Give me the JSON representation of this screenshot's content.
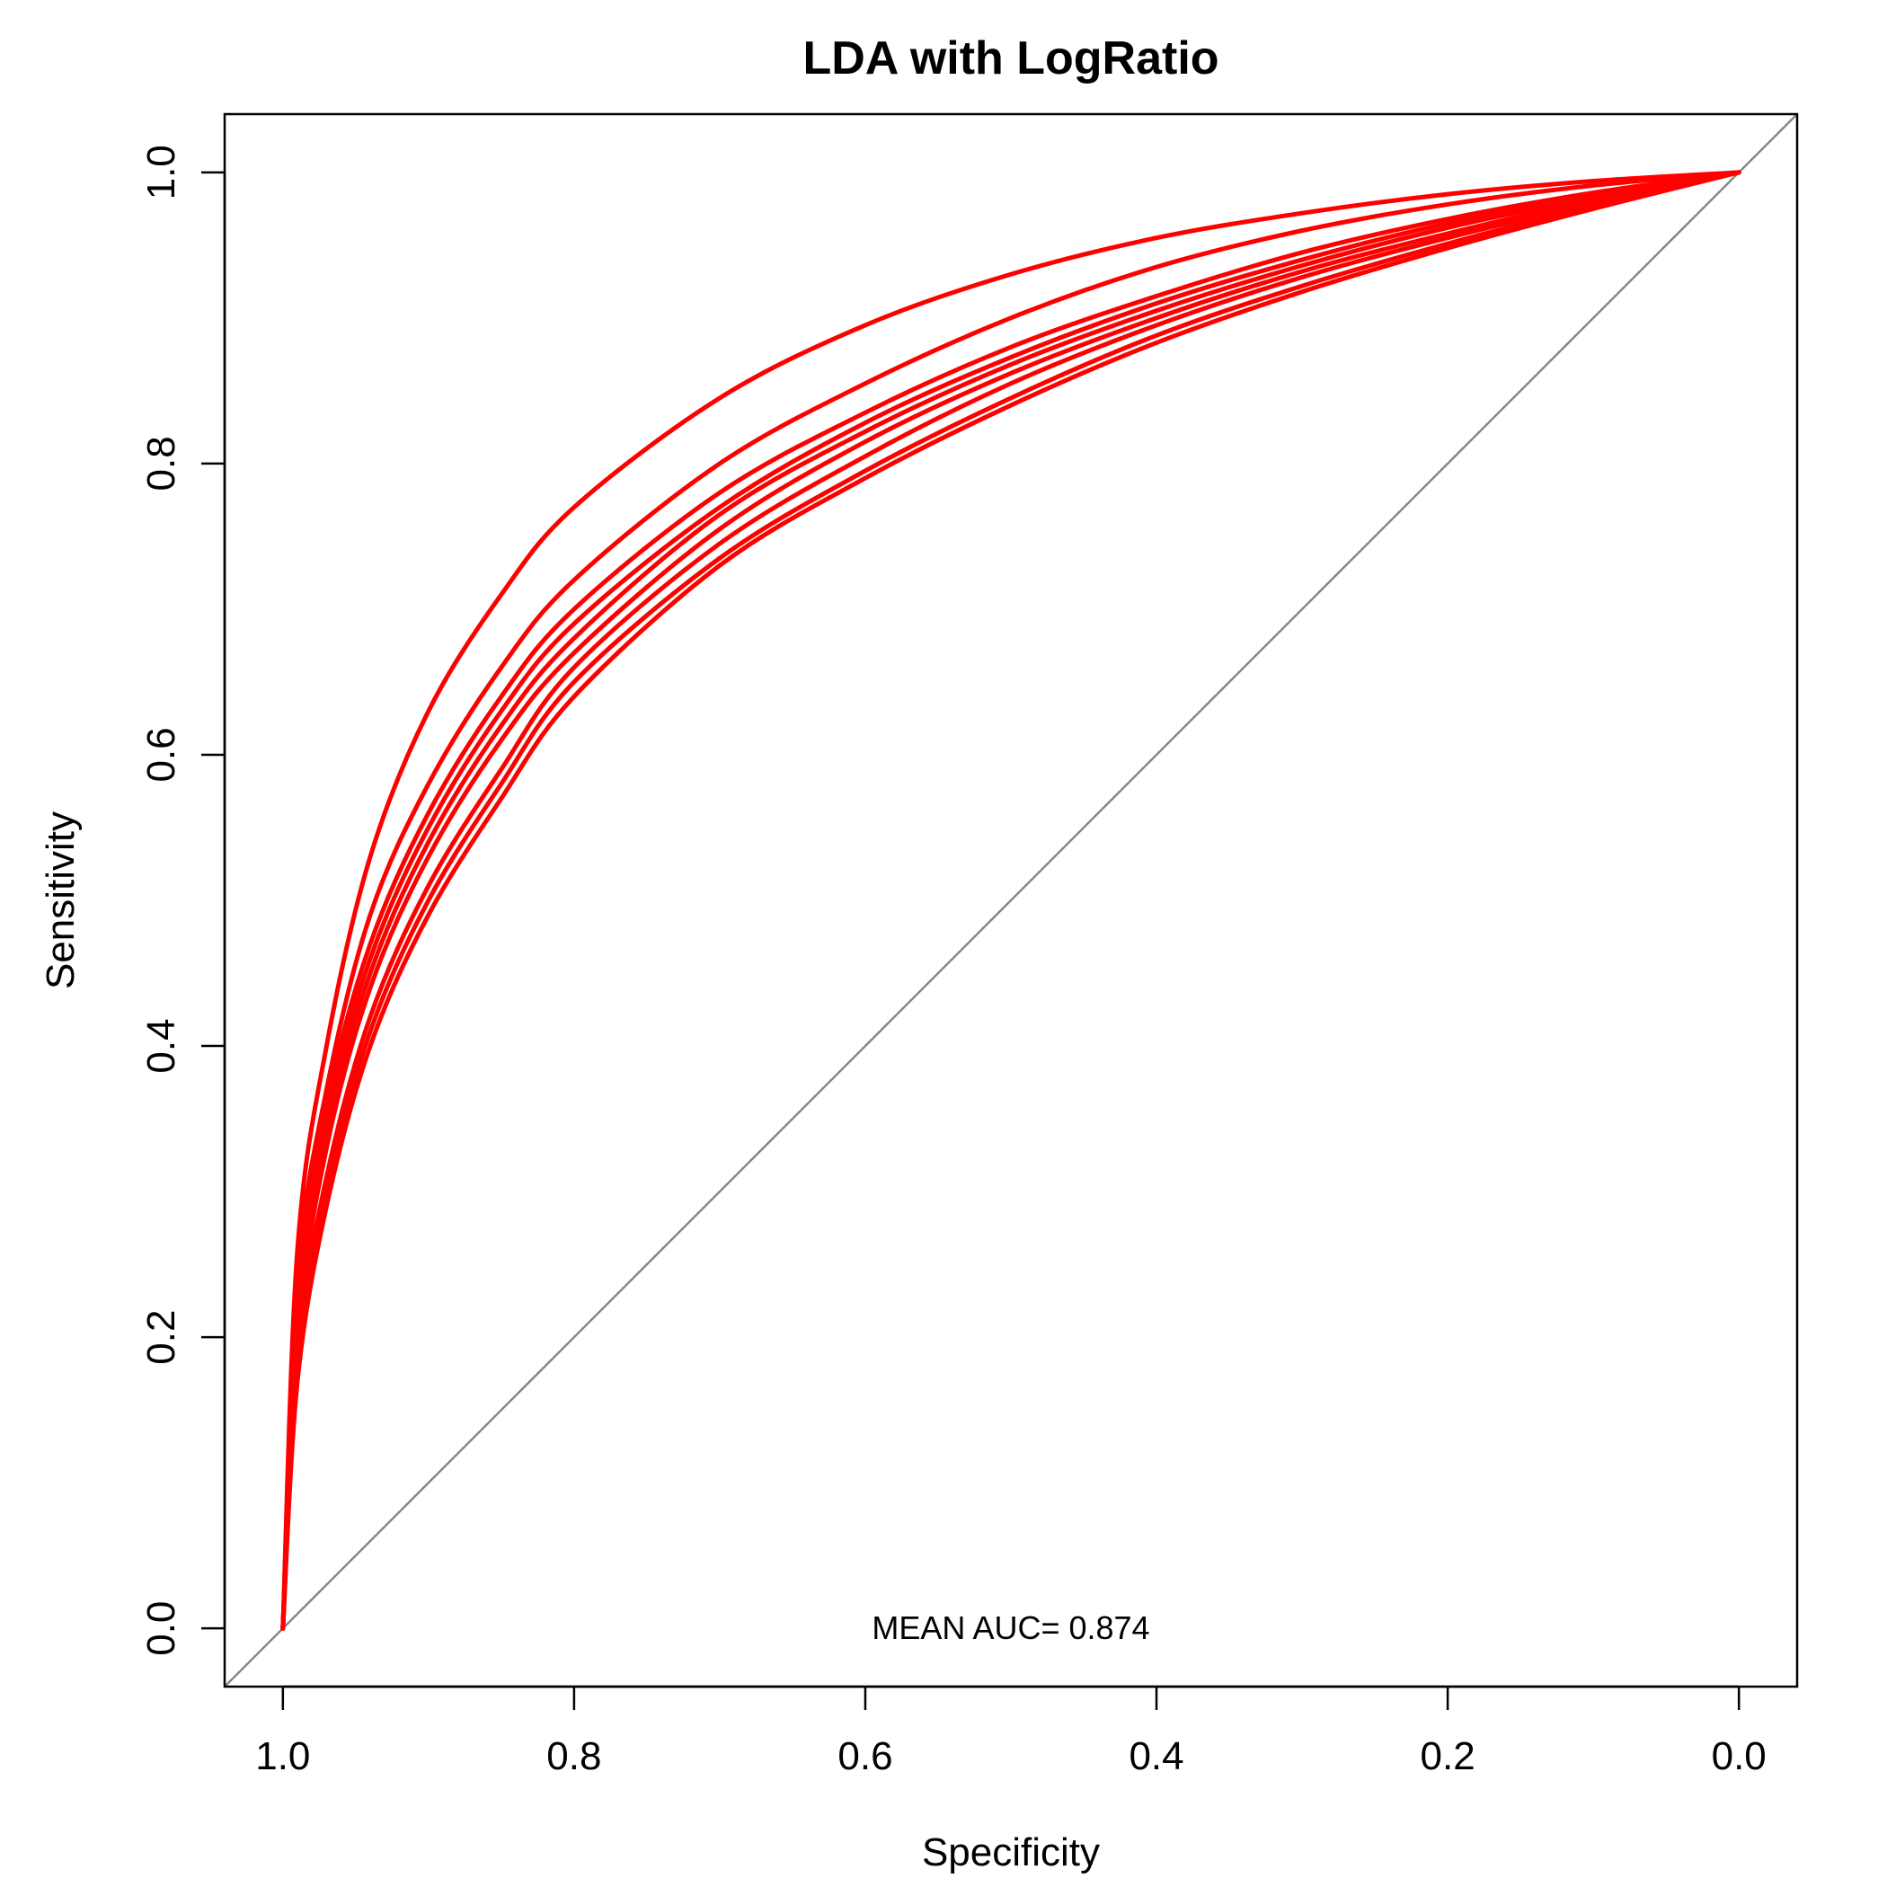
{
  "chart_data": {
    "type": "line",
    "title": "LDA with LogRatio",
    "xlabel": "Specificity",
    "ylabel": "Sensitivity",
    "x_reversed": true,
    "xlim": [
      1.04,
      -0.04
    ],
    "ylim": [
      -0.04,
      1.04
    ],
    "xticks": [
      1.0,
      0.8,
      0.6,
      0.4,
      0.2,
      0.0
    ],
    "xtick_labels": [
      "1.0",
      "0.8",
      "0.6",
      "0.4",
      "0.2",
      "0.0"
    ],
    "yticks": [
      0.0,
      0.2,
      0.4,
      0.6,
      0.8,
      1.0
    ],
    "ytick_labels": [
      "0.0",
      "0.2",
      "0.4",
      "0.6",
      "0.8",
      "1.0"
    ],
    "annotation": "MEAN AUC= 0.874",
    "line_color": "#ff0000",
    "reference_line_color": "#888888",
    "reference_line": [
      [
        1.0,
        0.0
      ],
      [
        0.0,
        1.0
      ]
    ],
    "grid": false,
    "series": [
      {
        "x": [
          1.0,
          0.99,
          0.97,
          0.94,
          0.9,
          0.85,
          0.8,
          0.7,
          0.6,
          0.5,
          0.4,
          0.3,
          0.2,
          0.1,
          0.0
        ],
        "y": [
          0.0,
          0.26,
          0.4,
          0.53,
          0.63,
          0.71,
          0.77,
          0.845,
          0.895,
          0.93,
          0.955,
          0.972,
          0.985,
          0.994,
          1.0
        ]
      },
      {
        "x": [
          1.0,
          0.99,
          0.97,
          0.94,
          0.9,
          0.85,
          0.8,
          0.7,
          0.6,
          0.5,
          0.4,
          0.3,
          0.2,
          0.1,
          0.0
        ],
        "y": [
          0.0,
          0.24,
          0.37,
          0.49,
          0.58,
          0.66,
          0.72,
          0.8,
          0.855,
          0.9,
          0.935,
          0.96,
          0.978,
          0.991,
          1.0
        ]
      },
      {
        "x": [
          1.0,
          0.99,
          0.97,
          0.94,
          0.9,
          0.85,
          0.8,
          0.7,
          0.6,
          0.5,
          0.4,
          0.3,
          0.2,
          0.1,
          0.0
        ],
        "y": [
          0.0,
          0.23,
          0.36,
          0.47,
          0.56,
          0.64,
          0.7,
          0.78,
          0.835,
          0.88,
          0.915,
          0.945,
          0.968,
          0.986,
          1.0
        ]
      },
      {
        "x": [
          1.0,
          0.99,
          0.97,
          0.94,
          0.9,
          0.85,
          0.8,
          0.7,
          0.6,
          0.5,
          0.4,
          0.3,
          0.2,
          0.1,
          0.0
        ],
        "y": [
          0.0,
          0.22,
          0.35,
          0.46,
          0.55,
          0.63,
          0.69,
          0.77,
          0.828,
          0.873,
          0.91,
          0.94,
          0.965,
          0.984,
          1.0
        ]
      },
      {
        "x": [
          1.0,
          0.99,
          0.97,
          0.94,
          0.9,
          0.85,
          0.8,
          0.7,
          0.6,
          0.5,
          0.4,
          0.3,
          0.2,
          0.1,
          0.0
        ],
        "y": [
          0.0,
          0.21,
          0.34,
          0.45,
          0.54,
          0.62,
          0.68,
          0.765,
          0.822,
          0.868,
          0.905,
          0.936,
          0.962,
          0.983,
          1.0
        ]
      },
      {
        "x": [
          1.0,
          0.99,
          0.97,
          0.94,
          0.9,
          0.85,
          0.8,
          0.7,
          0.6,
          0.5,
          0.4,
          0.3,
          0.2,
          0.1,
          0.0
        ],
        "y": [
          0.0,
          0.2,
          0.33,
          0.44,
          0.53,
          0.61,
          0.67,
          0.755,
          0.815,
          0.862,
          0.9,
          0.932,
          0.958,
          0.981,
          1.0
        ]
      },
      {
        "x": [
          1.0,
          0.99,
          0.97,
          0.94,
          0.9,
          0.85,
          0.8,
          0.7,
          0.6,
          0.5,
          0.4,
          0.3,
          0.2,
          0.1,
          0.0
        ],
        "y": [
          0.0,
          0.19,
          0.31,
          0.42,
          0.51,
          0.59,
          0.66,
          0.745,
          0.805,
          0.855,
          0.895,
          0.928,
          0.955,
          0.979,
          1.0
        ]
      },
      {
        "x": [
          1.0,
          0.99,
          0.97,
          0.94,
          0.9,
          0.85,
          0.8,
          0.7,
          0.6,
          0.5,
          0.4,
          0.3,
          0.2,
          0.1,
          0.0
        ],
        "y": [
          0.0,
          0.18,
          0.3,
          0.41,
          0.5,
          0.58,
          0.65,
          0.735,
          0.795,
          0.845,
          0.888,
          0.922,
          0.951,
          0.977,
          1.0
        ]
      },
      {
        "x": [
          1.0,
          0.99,
          0.97,
          0.94,
          0.9,
          0.85,
          0.8,
          0.7,
          0.6,
          0.5,
          0.4,
          0.3,
          0.2,
          0.1,
          0.0
        ],
        "y": [
          0.0,
          0.17,
          0.29,
          0.4,
          0.49,
          0.57,
          0.64,
          0.73,
          0.79,
          0.84,
          0.883,
          0.918,
          0.948,
          0.975,
          1.0
        ]
      }
    ]
  }
}
